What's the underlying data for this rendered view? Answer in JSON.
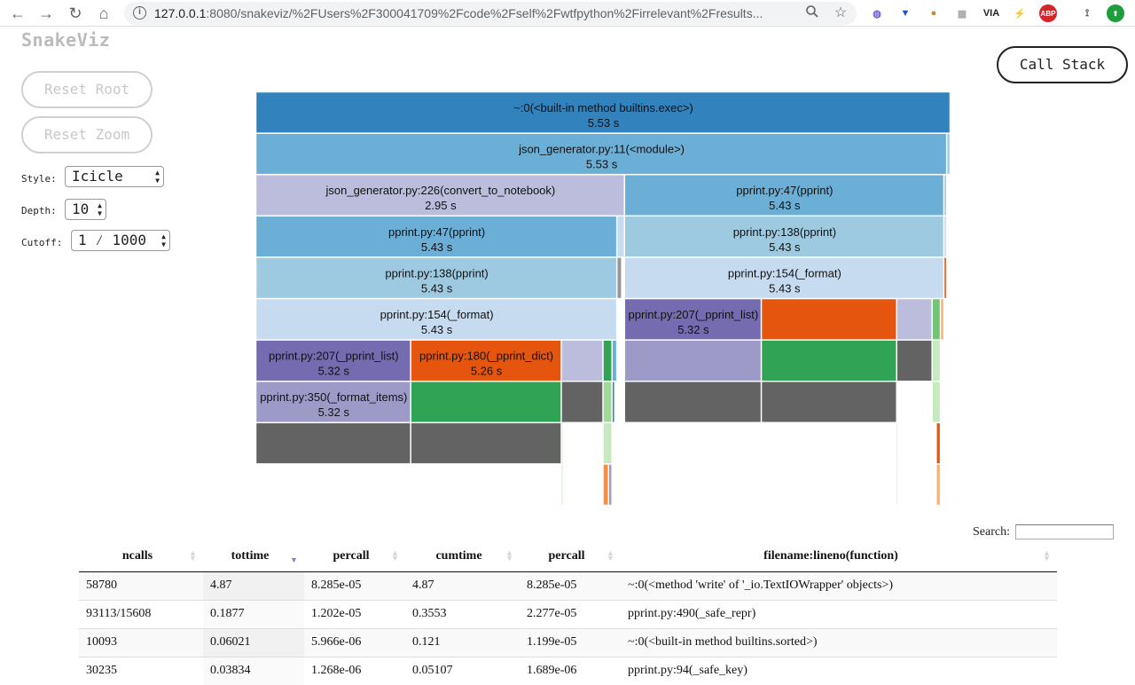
{
  "browser": {
    "url_host": "127.0.0.1",
    "url_rest": ":8080/snakeviz/%2FUsers%2F300041709%2Fcode%2Fself%2Fwtfpython%2Firrelevant%2Fresults...",
    "extensions": [
      {
        "name": "ext-1",
        "text": "◍",
        "color": "#6b5bd6"
      },
      {
        "name": "ext-2",
        "text": "▼",
        "color": "#1a4fd8"
      },
      {
        "name": "ext-3",
        "text": "●",
        "color": "#c8863a"
      },
      {
        "name": "ext-4",
        "text": "▦",
        "color": "#aaaaaa"
      },
      {
        "name": "ext-5",
        "text": "VIA",
        "color": "#222222"
      },
      {
        "name": "ext-6",
        "text": "⚡",
        "color": "#e0a800"
      },
      {
        "name": "ext-7",
        "text": "ABP",
        "color": "#ffffff",
        "bg": "#d6262b"
      },
      {
        "name": "ext-8",
        "text": "⟟",
        "color": "#444444"
      },
      {
        "name": "ext-9",
        "text": "⬆",
        "color": "#ffffff",
        "bg": "#1e9e3a"
      }
    ]
  },
  "app": {
    "logo": "SnakeViz",
    "reset_root": "Reset Root",
    "reset_zoom": "Reset Zoom",
    "call_stack": "Call Stack",
    "style_label": "Style:",
    "style_value": "Icicle",
    "depth_label": "Depth:",
    "depth_value": "10",
    "cutoff_label": "Cutoff:",
    "cutoff_value": "1 ⁄ 1000"
  },
  "icicle": {
    "blocks": [
      {
        "depth": 0,
        "x0": 0.0,
        "x1": 1.0,
        "color": "#3182bd",
        "func": "~:0(<built-in method builtins.exec>)",
        "time": "5.53 s"
      },
      {
        "depth": 1,
        "x0": 0.0,
        "x1": 0.995,
        "color": "#6baed6",
        "func": "json_generator.py:11(<module>)",
        "time": "5.53 s"
      },
      {
        "depth": 1,
        "x0": 0.995,
        "x1": 1.0,
        "color": "#9ecae1"
      },
      {
        "depth": 2,
        "x0": 0.0,
        "x1": 0.531,
        "color": "#bcbddc",
        "func": "json_generator.py:226(convert_to_notebook)",
        "time": "2.95 s"
      },
      {
        "depth": 2,
        "x0": 0.531,
        "x1": 0.991,
        "color": "#6baed6",
        "func": "pprint.py:47(pprint)",
        "time": "5.43 s"
      },
      {
        "depth": 2,
        "x0": 0.991,
        "x1": 0.995,
        "color": "#9ecae1"
      },
      {
        "depth": 3,
        "x0": 0.0,
        "x1": 0.52,
        "color": "#6baed6",
        "func": "pprint.py:47(pprint)",
        "time": "5.43 s"
      },
      {
        "depth": 3,
        "x0": 0.52,
        "x1": 0.531,
        "color": "#c6dbef"
      },
      {
        "depth": 3,
        "x0": 0.531,
        "x1": 0.991,
        "color": "#9ecae1",
        "func": "pprint.py:138(pprint)",
        "time": "5.43 s"
      },
      {
        "depth": 3,
        "x0": 0.991,
        "x1": 0.995,
        "color": "#c6dbef"
      },
      {
        "depth": 4,
        "x0": 0.0,
        "x1": 0.52,
        "color": "#9ecae1",
        "func": "pprint.py:138(pprint)",
        "time": "5.43 s"
      },
      {
        "depth": 4,
        "x0": 0.52,
        "x1": 0.527,
        "color": "#969696"
      },
      {
        "depth": 4,
        "x0": 0.531,
        "x1": 0.991,
        "color": "#c6dbef",
        "func": "pprint.py:154(_format)",
        "time": "5.43 s"
      },
      {
        "depth": 4,
        "x0": 0.991,
        "x1": 0.995,
        "color": "#e6550d"
      },
      {
        "depth": 5,
        "x0": 0.0,
        "x1": 0.52,
        "color": "#c6dbef",
        "func": "pprint.py:154(_format)",
        "time": "5.43 s"
      },
      {
        "depth": 5,
        "x0": 0.531,
        "x1": 0.728,
        "color": "#756bb1",
        "func": "pprint.py:207(_pprint_list)",
        "time": "5.32 s"
      },
      {
        "depth": 5,
        "x0": 0.728,
        "x1": 0.923,
        "color": "#e6550d"
      },
      {
        "depth": 5,
        "x0": 0.923,
        "x1": 0.974,
        "color": "#bcbddc"
      },
      {
        "depth": 5,
        "x0": 0.974,
        "x1": 0.986,
        "color": "#74c476"
      },
      {
        "depth": 5,
        "x0": 0.986,
        "x1": 0.991,
        "color": "#fdae6b"
      },
      {
        "depth": 6,
        "x0": 0.0,
        "x1": 0.223,
        "color": "#756bb1",
        "func": "pprint.py:207(_pprint_list)",
        "time": "5.32 s"
      },
      {
        "depth": 6,
        "x0": 0.223,
        "x1": 0.44,
        "color": "#e6550d",
        "func": "pprint.py:180(_pprint_dict)",
        "time": "5.26 s"
      },
      {
        "depth": 6,
        "x0": 0.44,
        "x1": 0.5,
        "color": "#bcbddc"
      },
      {
        "depth": 6,
        "x0": 0.5,
        "x1": 0.513,
        "color": "#31a354"
      },
      {
        "depth": 6,
        "x0": 0.513,
        "x1": 0.52,
        "color": "#6baed6"
      },
      {
        "depth": 6,
        "x0": 0.531,
        "x1": 0.728,
        "color": "#9e9ac8"
      },
      {
        "depth": 6,
        "x0": 0.728,
        "x1": 0.923,
        "color": "#31a354"
      },
      {
        "depth": 6,
        "x0": 0.923,
        "x1": 0.974,
        "color": "#636363"
      },
      {
        "depth": 6,
        "x0": 0.974,
        "x1": 0.986,
        "color": "#c7e9c0"
      },
      {
        "depth": 7,
        "x0": 0.0,
        "x1": 0.223,
        "color": "#9e9ac8",
        "func": "pprint.py:350(_format_items)",
        "time": "5.32 s"
      },
      {
        "depth": 7,
        "x0": 0.223,
        "x1": 0.44,
        "color": "#31a354"
      },
      {
        "depth": 7,
        "x0": 0.44,
        "x1": 0.5,
        "color": "#636363"
      },
      {
        "depth": 7,
        "x0": 0.5,
        "x1": 0.513,
        "color": "#a1d99b"
      },
      {
        "depth": 7,
        "x0": 0.513,
        "x1": 0.517,
        "color": "#3182bd"
      },
      {
        "depth": 7,
        "x0": 0.531,
        "x1": 0.728,
        "color": "#636363"
      },
      {
        "depth": 7,
        "x0": 0.728,
        "x1": 0.923,
        "color": "#636363"
      },
      {
        "depth": 7,
        "x0": 0.974,
        "x1": 0.986,
        "color": "#c7e9c0"
      },
      {
        "depth": 8,
        "x0": 0.0,
        "x1": 0.223,
        "color": "#636363"
      },
      {
        "depth": 8,
        "x0": 0.223,
        "x1": 0.44,
        "color": "#636363"
      },
      {
        "depth": 8,
        "x0": 0.44,
        "x1": 0.442,
        "color": "#c7e9c0"
      },
      {
        "depth": 8,
        "x0": 0.5,
        "x1": 0.513,
        "color": "#c7e9c0"
      },
      {
        "depth": 8,
        "x0": 0.922,
        "x1": 0.924,
        "color": "#c7e9c0"
      },
      {
        "depth": 8,
        "x0": 0.98,
        "x1": 0.986,
        "color": "#e6550d"
      },
      {
        "depth": 9,
        "x0": 0.44,
        "x1": 0.442,
        "color": "#a1d99b"
      },
      {
        "depth": 9,
        "x0": 0.5,
        "x1": 0.508,
        "color": "#fd8d3c"
      },
      {
        "depth": 9,
        "x0": 0.508,
        "x1": 0.513,
        "color": "#9e9ac8"
      },
      {
        "depth": 9,
        "x0": 0.922,
        "x1": 0.924,
        "color": "#c7e9c0"
      },
      {
        "depth": 9,
        "x0": 0.98,
        "x1": 0.986,
        "color": "#fdae6b"
      }
    ]
  },
  "search": {
    "label": "Search:",
    "value": ""
  },
  "table": {
    "columns": [
      {
        "label": "ncalls",
        "sort": "none"
      },
      {
        "label": "tottime",
        "sort": "desc"
      },
      {
        "label": "percall",
        "sort": "none"
      },
      {
        "label": "cumtime",
        "sort": "none"
      },
      {
        "label": "percall",
        "sort": "none"
      },
      {
        "label": "filename:lineno(function)",
        "sort": "none"
      }
    ],
    "rows": [
      [
        "58780",
        "4.87",
        "8.285e-05",
        "4.87",
        "8.285e-05",
        "~:0(<method 'write' of '_io.TextIOWrapper' objects>)"
      ],
      [
        "93113/15608",
        "0.1877",
        "1.202e-05",
        "0.3553",
        "2.277e-05",
        "pprint.py:490(_safe_repr)"
      ],
      [
        "10093",
        "0.06021",
        "5.966e-06",
        "0.121",
        "1.199e-05",
        "~:0(<built-in method builtins.sorted>)"
      ],
      [
        "30235",
        "0.03834",
        "1.268e-06",
        "0.05107",
        "1.689e-06",
        "pprint.py:94(_safe_key)"
      ]
    ]
  }
}
